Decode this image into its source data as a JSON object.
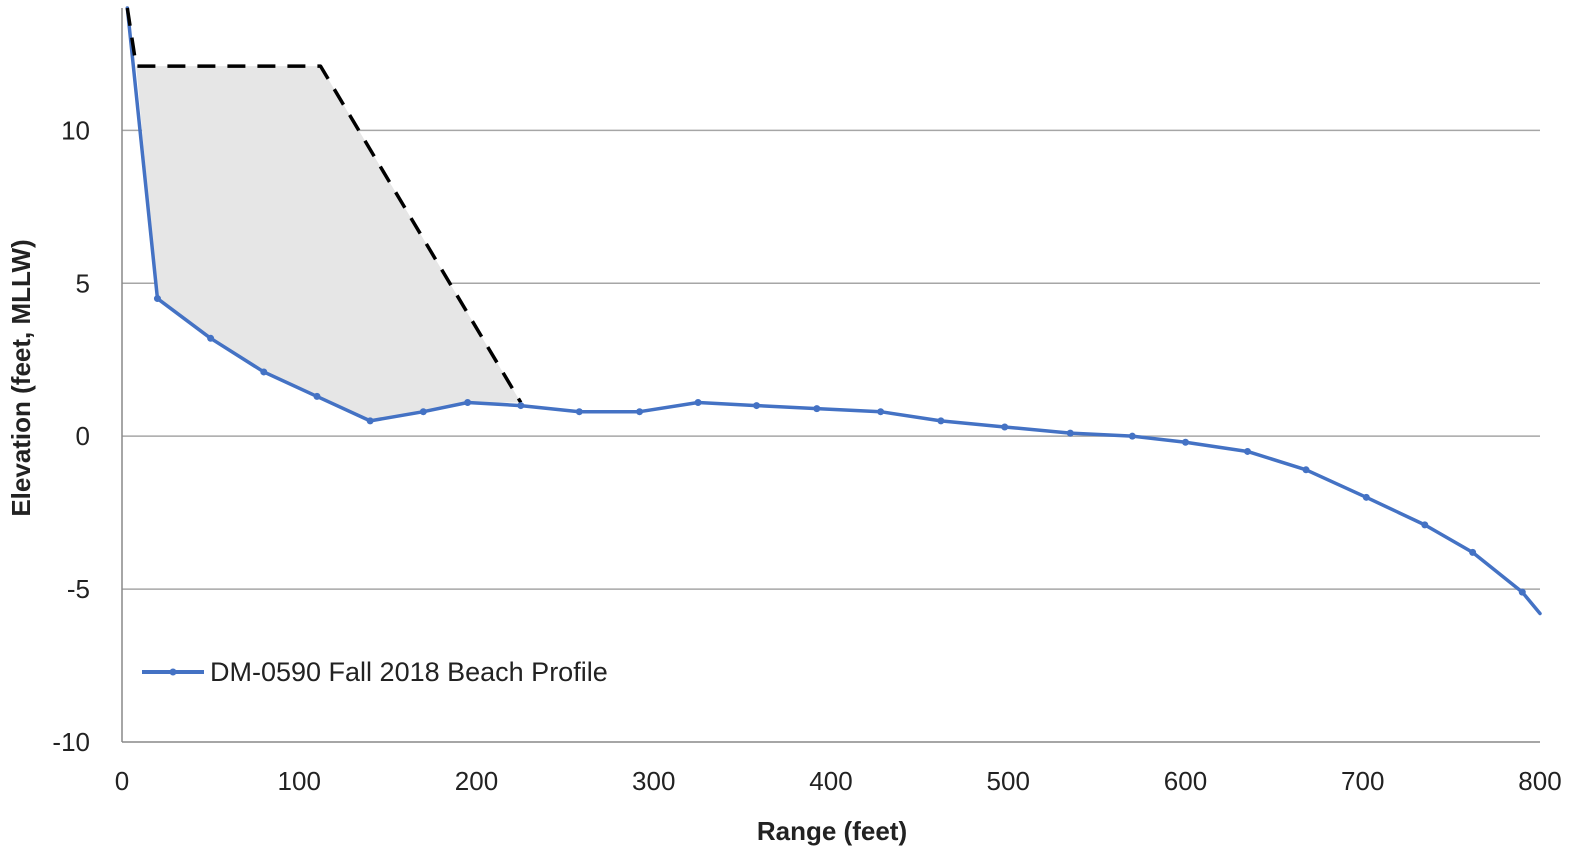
{
  "chart_data": {
    "type": "line",
    "title": "",
    "xlabel": "Range (feet)",
    "ylabel": "Elevation (feet, MLLW)",
    "xlim": [
      0,
      800
    ],
    "ylim": [
      -10,
      14
    ],
    "x_ticks": [
      0,
      100,
      200,
      300,
      400,
      500,
      600,
      700,
      800
    ],
    "y_ticks": [
      10,
      5,
      0,
      -5,
      -10
    ],
    "grid": "horizontal",
    "legend_position": "lower-left",
    "series": [
      {
        "name": "DM-0590 Fall 2018 Beach Profile",
        "color": "#4472c4",
        "markers": true,
        "x": [
          3,
          20,
          50,
          80,
          110,
          140,
          170,
          195,
          225,
          258,
          292,
          325,
          358,
          392,
          428,
          462,
          498,
          535,
          570,
          600,
          635,
          668,
          702,
          735,
          762,
          790,
          800
        ],
        "y": [
          14,
          4.5,
          3.2,
          2.1,
          1.3,
          0.5,
          0.8,
          1.1,
          1.0,
          0.8,
          0.8,
          1.1,
          1.0,
          0.9,
          0.8,
          0.5,
          0.3,
          0.1,
          0.0,
          -0.2,
          -0.5,
          -1.1,
          -2.0,
          -2.9,
          -3.8,
          -5.1,
          -5.8
        ]
      },
      {
        "name": "",
        "color": "#000000",
        "dashed": true,
        "x": [
          3,
          8,
          112,
          225
        ],
        "y": [
          14,
          12.1,
          12.1,
          1.1
        ]
      }
    ],
    "shaded_region": {
      "color": "#e6e6e6",
      "outline_x": [
        8,
        112,
        225,
        195,
        170,
        140,
        110,
        80,
        50,
        20
      ],
      "outline_y": [
        12.1,
        12.1,
        1.1,
        1.1,
        0.8,
        0.5,
        1.3,
        2.1,
        3.2,
        4.5
      ]
    }
  }
}
